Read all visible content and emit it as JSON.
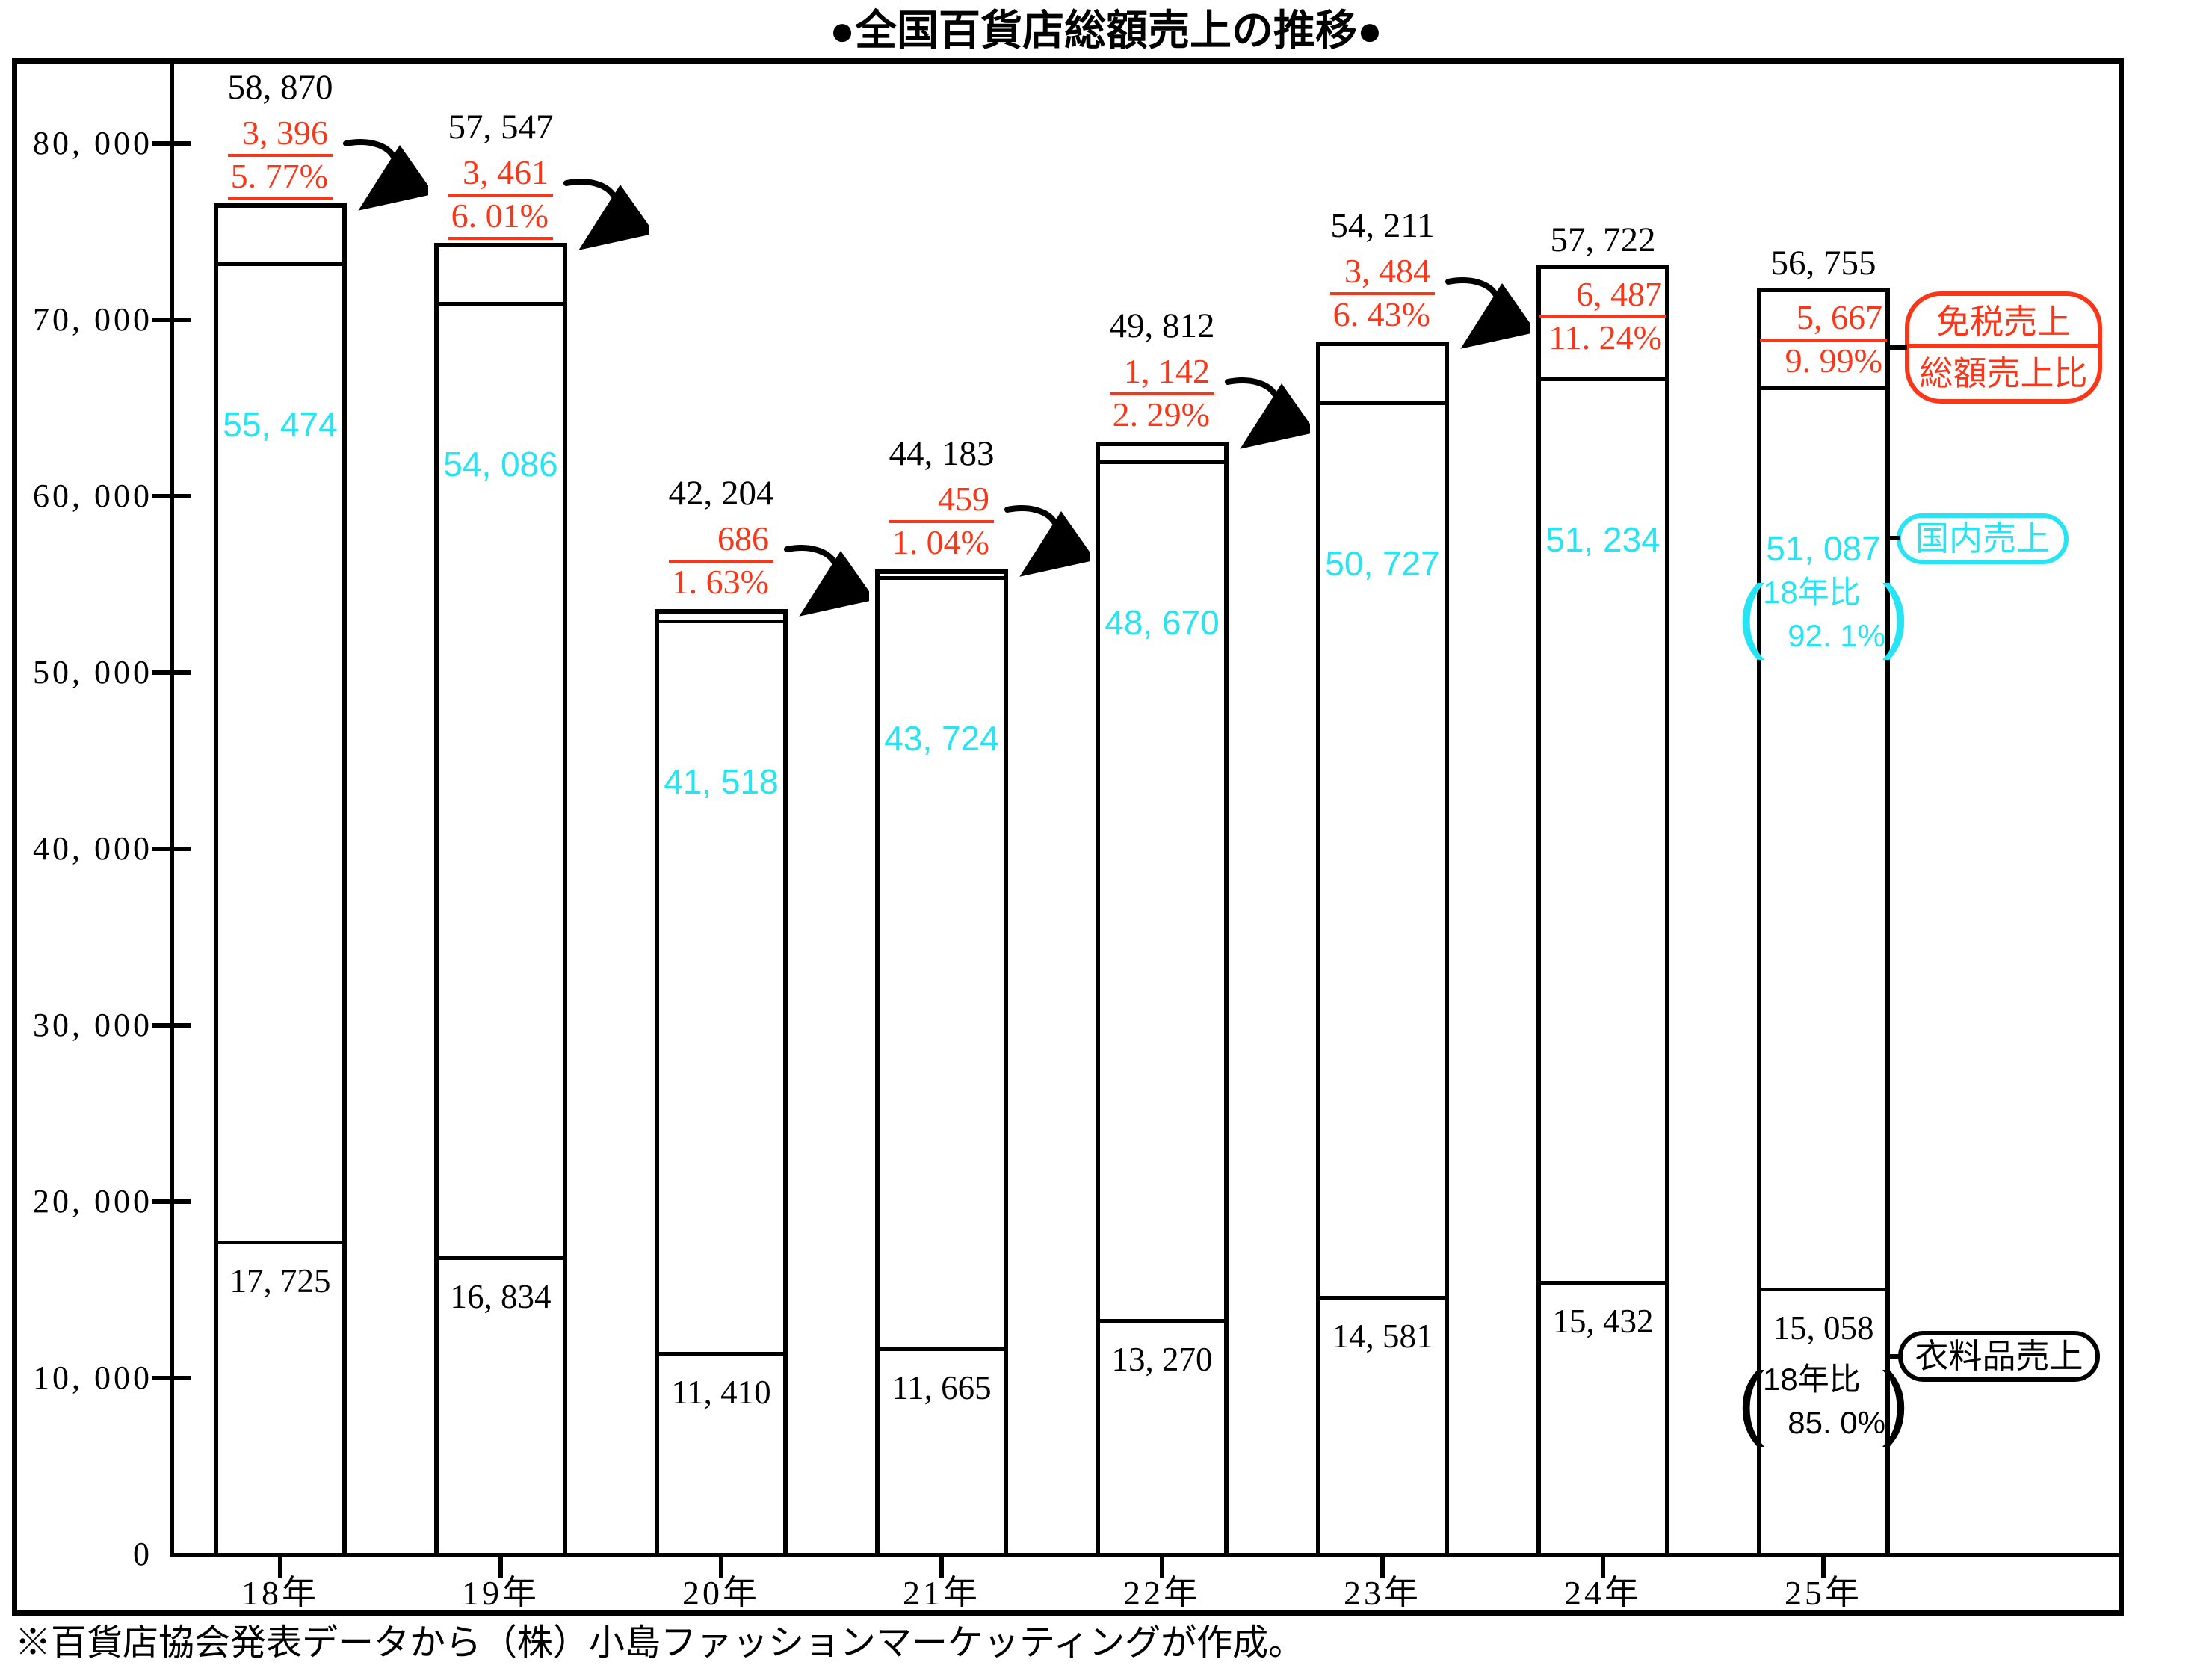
{
  "title": "●全国百貨店総額売上の推移●",
  "source_note": "※百貨店協会発表データから（株）小島ファッションマーケッティングが作成。",
  "colors": {
    "taxfree_red": "#fa3619",
    "domestic_cyan": "#26e4f4",
    "ink": "#000000"
  },
  "legend": {
    "taxfree_line1": "免税売上",
    "taxfree_line2": "総額売上比",
    "domestic": "国内売上",
    "clothing": "衣料品売上"
  },
  "chart_data": {
    "type": "bar",
    "stacked": true,
    "grid": false,
    "legend_position": "right",
    "categories": [
      "18年",
      "19年",
      "20年",
      "21年",
      "22年",
      "23年",
      "24年",
      "25年"
    ],
    "series": [
      {
        "name": "衣料品売上",
        "values": [
          17725,
          16834,
          11410,
          11665,
          13270,
          14581,
          15432,
          15058
        ]
      },
      {
        "name": "国内売上",
        "values": [
          55474,
          54086,
          41518,
          43724,
          48670,
          50727,
          51234,
          51087
        ]
      },
      {
        "name": "免税売上",
        "values": [
          3396,
          3461,
          686,
          459,
          1142,
          3484,
          6487,
          5667
        ]
      }
    ],
    "totals": [
      58870,
      57547,
      42204,
      44183,
      49812,
      54211,
      57722,
      56755
    ],
    "taxfree_share_pct": [
      "5.77%",
      "6.01%",
      "1.63%",
      "1.04%",
      "2.29%",
      "6.43%",
      "11.24%",
      "9.99%"
    ],
    "year25_vs18": {
      "label": "18年比",
      "domestic_pct": "92.1%",
      "clothing_pct": "85.0%"
    },
    "xlabel": "",
    "ylabel": "",
    "ylim": [
      0,
      80000
    ],
    "ytick_step": 10000
  }
}
